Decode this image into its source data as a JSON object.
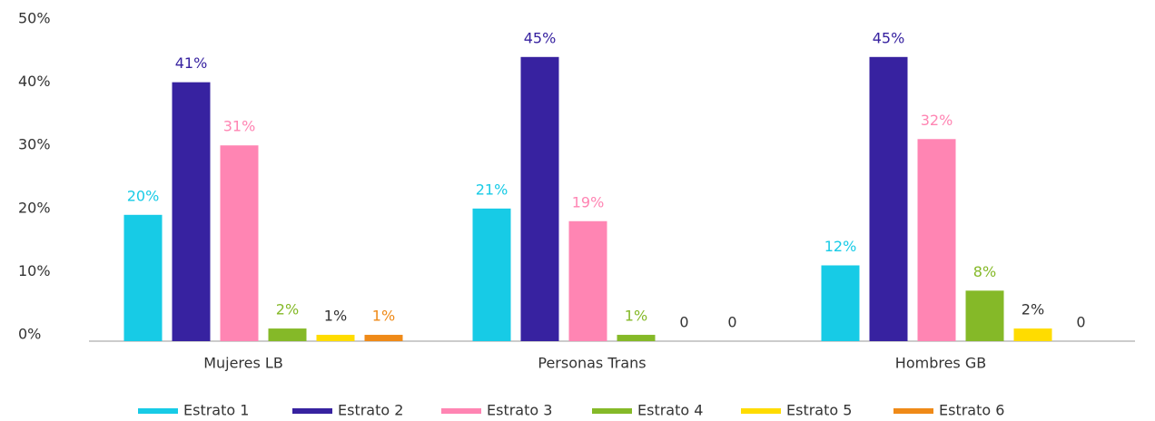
{
  "chart_data": {
    "type": "bar",
    "categories": [
      "Mujeres LB",
      "Personas Trans",
      "Hombres GB"
    ],
    "series": [
      {
        "name": "Estrato 1",
        "color": "#17cbe6",
        "values": [
          20,
          21,
          12
        ],
        "value_labels": [
          "20%",
          "21%",
          "12%"
        ]
      },
      {
        "name": "Estrato 2",
        "color": "#3722a0",
        "values": [
          41,
          45,
          45
        ],
        "value_labels": [
          "41%",
          "45%",
          "45%"
        ]
      },
      {
        "name": "Estrato 3",
        "color": "#ff85b3",
        "values": [
          31,
          19,
          32
        ],
        "value_labels": [
          "31%",
          "19%",
          "32%"
        ]
      },
      {
        "name": "Estrato 4",
        "color": "#85b928",
        "values": [
          2,
          1,
          8
        ],
        "value_labels": [
          "2%",
          "1%",
          "8%"
        ]
      },
      {
        "name": "Estrato 5",
        "color": "#ffdc00",
        "values": [
          1,
          0,
          2
        ],
        "value_labels": [
          "1%",
          "0",
          "2%"
        ]
      },
      {
        "name": "Estrato 6",
        "color": "#ef8a18",
        "values": [
          1,
          0,
          0
        ],
        "value_labels": [
          "1%",
          "0",
          "0"
        ]
      }
    ],
    "ylim": [
      0,
      50
    ],
    "yticks": [
      {
        "value": 0,
        "label": "0%"
      },
      {
        "value": 10,
        "label": "10%"
      },
      {
        "value": 20,
        "label": "20%"
      },
      {
        "value": 30,
        "label": "30%"
      },
      {
        "value": 40,
        "label": "40%"
      },
      {
        "value": 50,
        "label": "50%"
      }
    ],
    "grid": false,
    "legend": "bottom"
  }
}
